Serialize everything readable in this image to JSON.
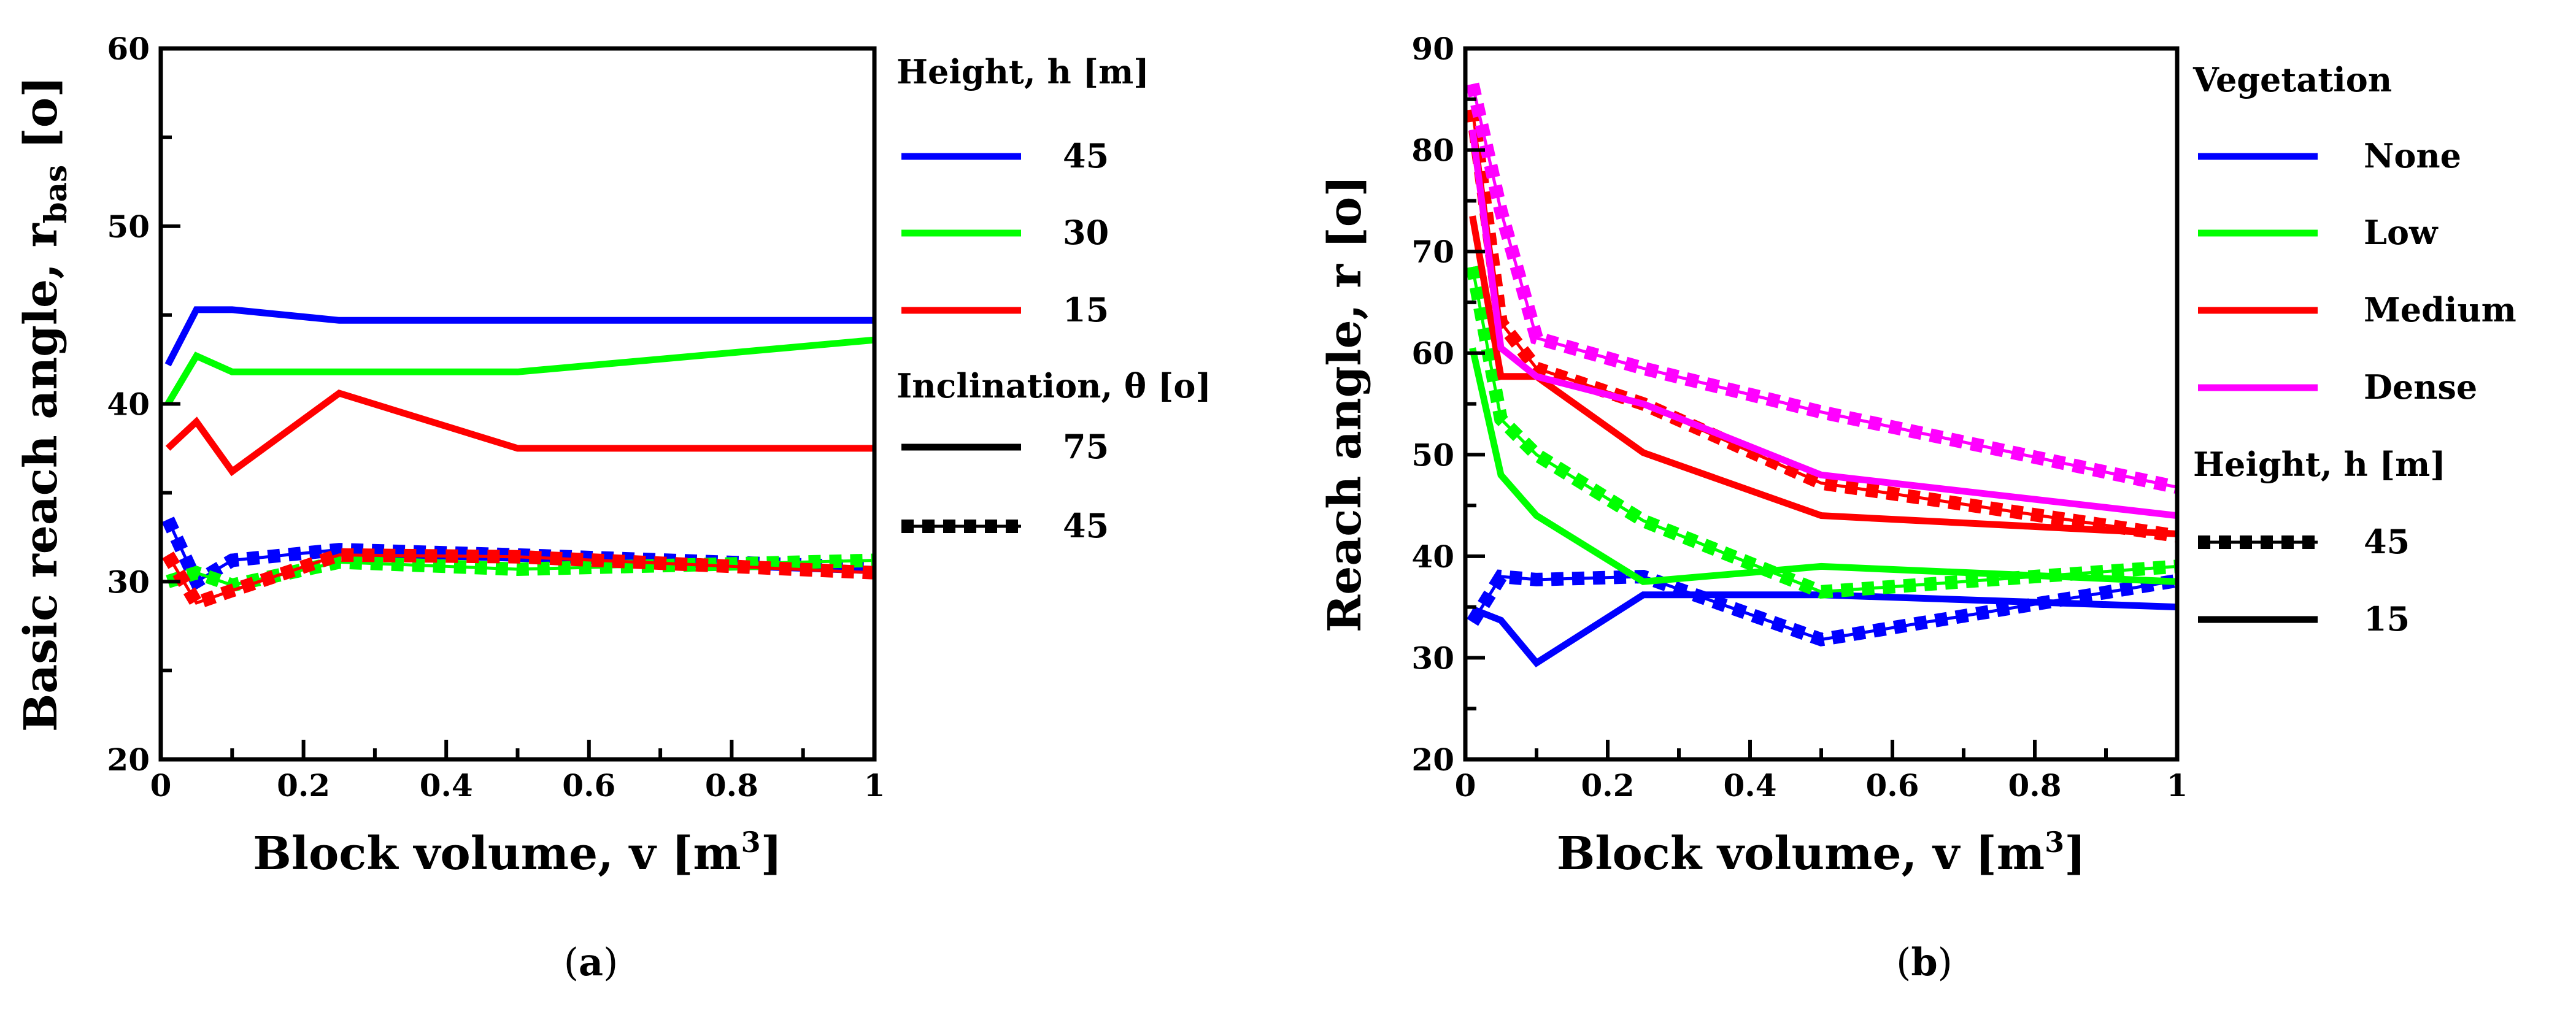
{
  "chart_data": [
    {
      "type": "line",
      "caption": "(a)",
      "caption_letter": "a",
      "xlabel": "Block volume, v [m",
      "xlabel_sup": "3",
      "xlabel_end": "]",
      "ylabel": "Basic reach angle, r",
      "ylabel_sub": "bas",
      "ylabel_end": " [o]",
      "xlim": [
        0,
        1
      ],
      "ylim": [
        20,
        60
      ],
      "xticks": [
        0,
        0.2,
        0.4,
        0.6,
        0.8,
        1
      ],
      "xtick_labels": [
        "0",
        "0.2",
        "0.4",
        "0.6",
        "0.8",
        "1"
      ],
      "yticks": [
        20,
        30,
        40,
        50,
        60
      ],
      "ytick_labels": [
        "20",
        "30",
        "40",
        "50",
        "60"
      ],
      "x": [
        0.01,
        0.05,
        0.1,
        0.25,
        0.5,
        1
      ],
      "series": [
        {
          "name": "h=45, θ=75",
          "color": "#0000ff",
          "style": "solid",
          "values": [
            42.2,
            45.3,
            45.3,
            44.7,
            44.7,
            44.7
          ]
        },
        {
          "name": "h=30, θ=75",
          "color": "#00ff00",
          "style": "solid",
          "values": [
            40.0,
            42.7,
            41.8,
            41.8,
            41.8,
            43.6
          ]
        },
        {
          "name": "h=15, θ=75",
          "color": "#ff0000",
          "style": "solid",
          "values": [
            37.5,
            39.0,
            36.2,
            40.6,
            37.5,
            37.5
          ]
        },
        {
          "name": "h=45, θ=45",
          "color": "#0000ff",
          "style": "dashed",
          "values": [
            33.5,
            30.0,
            31.2,
            31.8,
            31.5,
            30.8
          ]
        },
        {
          "name": "h=30, θ=45",
          "color": "#00ff00",
          "style": "dashed",
          "values": [
            30.0,
            30.5,
            29.8,
            31.1,
            30.7,
            31.2
          ]
        },
        {
          "name": "h=15, θ=45",
          "color": "#ff0000",
          "style": "dashed",
          "values": [
            31.5,
            28.8,
            29.5,
            31.5,
            31.4,
            30.5
          ]
        }
      ],
      "legend": {
        "placement": "right",
        "groups": [
          {
            "title": "Height, h [m]",
            "items": [
              {
                "label": "45",
                "color": "#0000ff",
                "style": "solid"
              },
              {
                "label": "30",
                "color": "#00ff00",
                "style": "solid"
              },
              {
                "label": "15",
                "color": "#ff0000",
                "style": "solid"
              }
            ]
          },
          {
            "title": "Inclination, θ [o]",
            "items": [
              {
                "label": "75",
                "color": "#000000",
                "style": "solid"
              },
              {
                "label": "45",
                "color": "#000000",
                "style": "dashed"
              }
            ]
          }
        ]
      }
    },
    {
      "type": "line",
      "caption": "(b)",
      "caption_letter": "b",
      "xlabel": "Block volume, v [m",
      "xlabel_sup": "3",
      "xlabel_end": "]",
      "ylabel": "Reach angle, r",
      "ylabel_sub": "",
      "ylabel_end": " [o]",
      "xlim": [
        0,
        1
      ],
      "ylim": [
        20,
        90
      ],
      "xticks": [
        0,
        0.2,
        0.4,
        0.6,
        0.8,
        1
      ],
      "xtick_labels": [
        "0",
        "0.2",
        "0.4",
        "0.6",
        "0.8",
        "1"
      ],
      "yticks": [
        20,
        30,
        40,
        50,
        60,
        70,
        80,
        90
      ],
      "ytick_labels": [
        "20",
        "30",
        "40",
        "50",
        "60",
        "70",
        "80",
        "90"
      ],
      "x": [
        0.01,
        0.05,
        0.1,
        0.25,
        0.5,
        1
      ],
      "series": [
        {
          "name": "None, h=15",
          "color": "#0000ff",
          "style": "solid",
          "values": [
            34.8,
            33.7,
            29.5,
            36.2,
            36.2,
            35.0
          ]
        },
        {
          "name": "None, h=45",
          "color": "#0000ff",
          "style": "dashed",
          "values": [
            33.5,
            38.0,
            37.7,
            38.0,
            31.8,
            37.6
          ]
        },
        {
          "name": "Low, h=15",
          "color": "#00ff00",
          "style": "solid",
          "values": [
            60.5,
            48.0,
            44.0,
            37.5,
            39.0,
            37.5
          ]
        },
        {
          "name": "Low, h=45",
          "color": "#00ff00",
          "style": "dashed",
          "values": [
            68.5,
            53.5,
            50.0,
            43.5,
            36.5,
            39.0
          ]
        },
        {
          "name": "Medium, h=15",
          "color": "#ff0000",
          "style": "solid",
          "values": [
            73.5,
            57.7,
            57.7,
            50.2,
            44.0,
            42.2
          ]
        },
        {
          "name": "Medium, h=45",
          "color": "#ff0000",
          "style": "dashed",
          "values": [
            84.0,
            63.0,
            58.5,
            55.0,
            47.2,
            42.0
          ]
        },
        {
          "name": "Dense, h=15",
          "color": "#ff00ff",
          "style": "solid",
          "values": [
            82.0,
            60.5,
            57.7,
            55.0,
            48.0,
            44.0
          ]
        },
        {
          "name": "Dense, h=45",
          "color": "#ff00ff",
          "style": "dashed",
          "values": [
            86.5,
            74.0,
            61.5,
            58.5,
            54.2,
            46.8
          ]
        }
      ],
      "legend": {
        "placement": "right",
        "groups": [
          {
            "title": "Vegetation",
            "items": [
              {
                "label": "None",
                "color": "#0000ff",
                "style": "solid"
              },
              {
                "label": "Low",
                "color": "#00ff00",
                "style": "solid"
              },
              {
                "label": "Medium",
                "color": "#ff0000",
                "style": "solid"
              },
              {
                "label": "Dense",
                "color": "#ff00ff",
                "style": "solid"
              }
            ]
          },
          {
            "title": "Height, h [m]",
            "items": [
              {
                "label": "45",
                "color": "#000000",
                "style": "dashed"
              },
              {
                "label": "15",
                "color": "#000000",
                "style": "solid"
              }
            ]
          }
        ]
      }
    }
  ]
}
